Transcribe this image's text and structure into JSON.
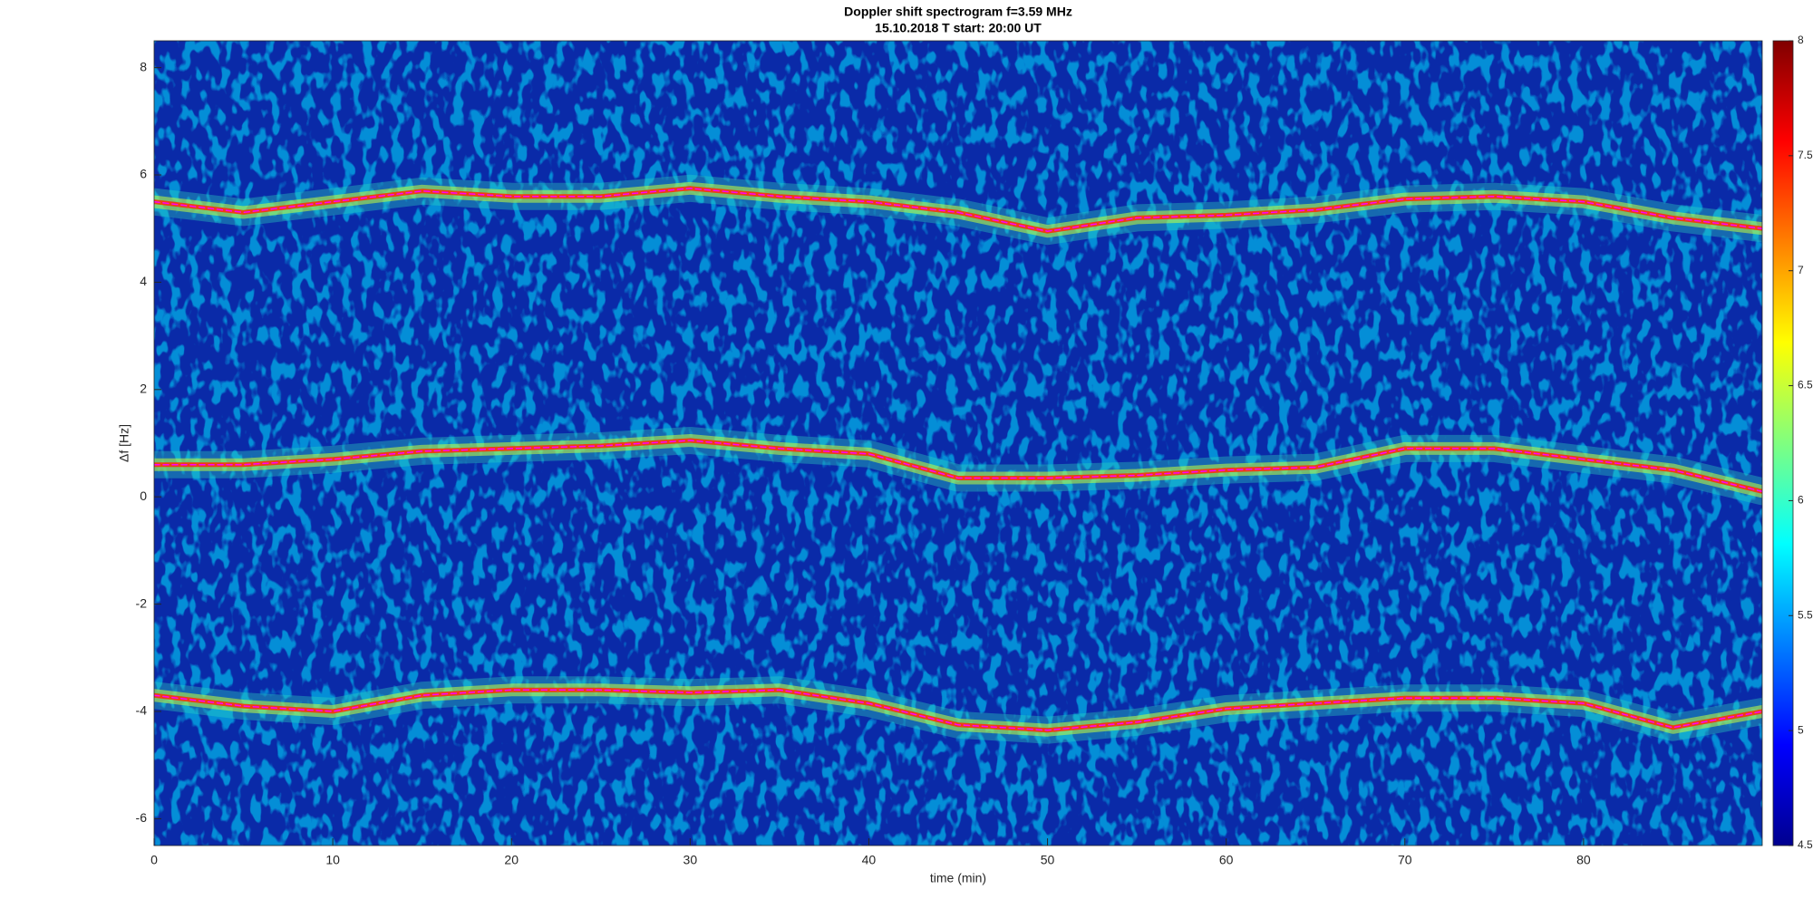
{
  "chart_data": {
    "type": "spectrogram",
    "title": "Doppler shift spectrogram f=3.59 MHz",
    "subtitle": "15.10.2018   T start: 20:00 UT",
    "xlabel": "time (min)",
    "ylabel": "Δf [Hz]",
    "x": [
      0,
      5,
      10,
      15,
      20,
      25,
      30,
      35,
      40,
      45,
      50,
      55,
      60,
      65,
      70,
      75,
      80,
      85,
      90
    ],
    "series": [
      {
        "color": "#ff00ff",
        "values": [
          5.5,
          5.3,
          5.5,
          5.7,
          5.6,
          5.6,
          5.75,
          5.6,
          5.5,
          5.3,
          4.95,
          5.2,
          5.25,
          5.35,
          5.55,
          5.6,
          5.5,
          5.2,
          5.0
        ]
      },
      {
        "color": "#ff00ff",
        "values": [
          0.6,
          0.6,
          0.7,
          0.85,
          0.9,
          0.95,
          1.05,
          0.9,
          0.8,
          0.35,
          0.35,
          0.4,
          0.5,
          0.55,
          0.9,
          0.9,
          0.7,
          0.5,
          0.1
        ]
      },
      {
        "color": "#ff00ff",
        "values": [
          -3.7,
          -3.9,
          -4.0,
          -3.7,
          -3.6,
          -3.6,
          -3.65,
          -3.6,
          -3.85,
          -4.25,
          -4.35,
          -4.2,
          -3.95,
          -3.85,
          -3.75,
          -3.75,
          -3.85,
          -4.3,
          -4.0
        ]
      }
    ],
    "xlim": [
      0,
      90
    ],
    "xticks": [
      0,
      10,
      20,
      30,
      40,
      50,
      60,
      70,
      80
    ],
    "ylim": [
      -6.5,
      8.5
    ],
    "yticks": [
      -6,
      -4,
      -2,
      0,
      2,
      4,
      6,
      8
    ],
    "clim": [
      4.5,
      8
    ],
    "cticks": [
      4.5,
      5,
      5.5,
      6,
      6.5,
      7,
      7.5,
      8
    ]
  }
}
